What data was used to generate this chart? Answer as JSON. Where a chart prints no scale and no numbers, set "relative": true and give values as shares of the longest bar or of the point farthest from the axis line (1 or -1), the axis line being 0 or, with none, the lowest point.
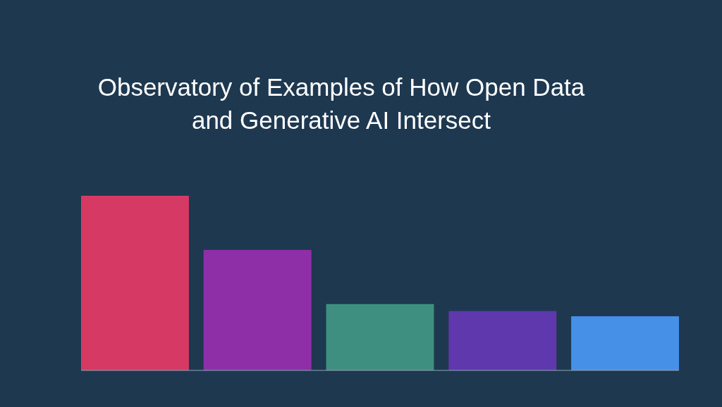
{
  "chart_data": {
    "type": "bar",
    "title": "Observatory of Examples of How Open Data\nand Generative AI Intersect",
    "categories": [
      null,
      null,
      null,
      null,
      null
    ],
    "values": [
      1,
      0.69,
      0.38,
      0.34,
      0.31
    ],
    "colors": [
      "#d63a64",
      "#8e2fa8",
      "#3f8f80",
      "#5e38ac",
      "#4690e8"
    ],
    "relative": true
  }
}
